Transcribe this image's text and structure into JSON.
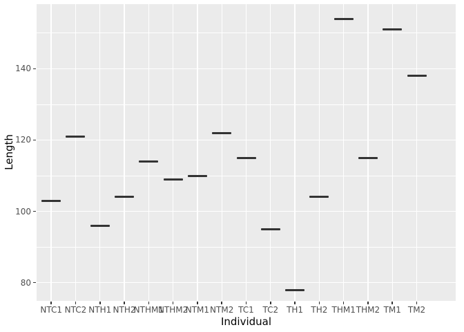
{
  "chart_data": {
    "type": "scatter",
    "marker": "horizontal-line-segment",
    "title": "",
    "xlabel": "Individual",
    "ylabel": "Length",
    "categories": [
      "NTC1",
      "NTC2",
      "NTH1",
      "NTH2",
      "NTHM1",
      "NTHM2",
      "NTM1",
      "NTM2",
      "TC1",
      "TC2",
      "TH1",
      "TH2",
      "THM1",
      "THM2",
      "TM1",
      "TM2"
    ],
    "values": [
      103,
      121,
      96,
      104,
      114,
      109,
      110,
      122,
      115,
      95,
      78,
      104,
      154,
      115,
      151,
      138
    ],
    "ylim": [
      74.9,
      158.1
    ],
    "y_major_ticks": [
      80,
      100,
      120,
      140
    ],
    "y_minor_ticks": [
      90,
      110,
      130,
      150
    ],
    "grid": "on",
    "legend": "none",
    "style": {
      "panel_bg": "#ebebeb",
      "grid_color": "#ffffff",
      "segment_color": "#333333",
      "tick_label_color": "#4d4d4d",
      "axis_title_color": "#000000",
      "tick_mark_color": "#333333"
    }
  }
}
